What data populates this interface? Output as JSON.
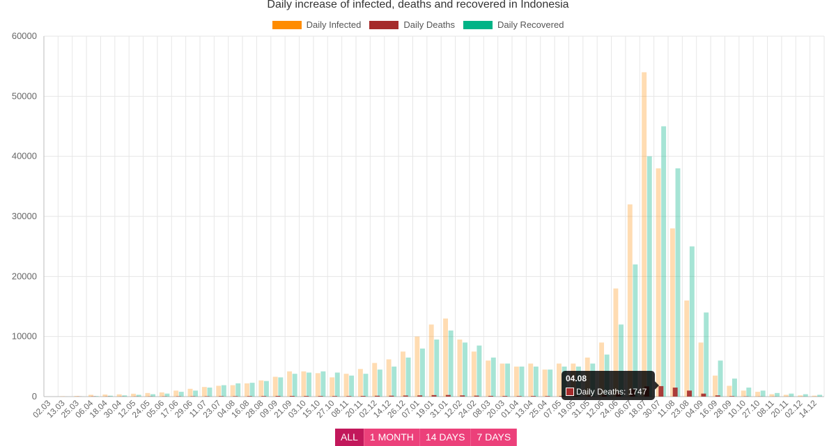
{
  "chart_data": {
    "type": "bar",
    "title": "Daily increase of infected, deaths and recovered in Indonesia",
    "ylim": [
      0,
      60000
    ],
    "yticks": [
      0,
      10000,
      20000,
      30000,
      40000,
      50000,
      60000
    ],
    "grid": true,
    "legend_position": "top",
    "x_tick_labels": [
      "02.03",
      "13.03",
      "25.03",
      "06.04",
      "18.04",
      "30.04",
      "12.05",
      "24.05",
      "05.06",
      "17.06",
      "29.06",
      "11.07",
      "23.07",
      "04.08",
      "16.08",
      "28.08",
      "09.09",
      "21.09",
      "03.10",
      "15.10",
      "27.10",
      "08.11",
      "20.11",
      "02.12",
      "14.12",
      "26.12",
      "07.01",
      "19.01",
      "31.01",
      "12.02",
      "24.02",
      "08.03",
      "20.03",
      "01.04",
      "13.04",
      "25.04",
      "07.05",
      "19.05",
      "31.05",
      "12.06",
      "24.06",
      "06.07",
      "18.07",
      "30.07",
      "11.08",
      "23.08",
      "04.09",
      "16.09",
      "28.09",
      "10.10",
      "27.10",
      "08.11",
      "20.11",
      "02.12",
      "14.12"
    ],
    "series": [
      {
        "name": "Daily Infected",
        "color": "#ff8c00",
        "x": [
          "02.03",
          "13.03",
          "25.03",
          "06.04",
          "18.04",
          "30.04",
          "12.05",
          "24.05",
          "05.06",
          "17.06",
          "29.06",
          "11.07",
          "23.07",
          "04.08",
          "16.08",
          "28.08",
          "09.09",
          "21.09",
          "03.10",
          "15.10",
          "27.10",
          "08.11",
          "20.11",
          "02.12",
          "14.12",
          "26.12",
          "07.01",
          "19.01",
          "31.01",
          "12.02",
          "24.02",
          "08.03",
          "20.03",
          "01.04",
          "13.04",
          "25.04",
          "07.05",
          "19.05",
          "31.05",
          "12.06",
          "24.06",
          "06.07",
          "18.07",
          "30.07",
          "11.08",
          "23.08",
          "04.09",
          "16.09",
          "28.09",
          "10.10",
          "27.10",
          "08.11",
          "20.11",
          "02.12",
          "14.12"
        ],
        "values": [
          2,
          50,
          100,
          300,
          350,
          380,
          480,
          600,
          700,
          1000,
          1300,
          1600,
          1800,
          1900,
          2200,
          2700,
          3300,
          4200,
          4200,
          3900,
          3200,
          3800,
          4600,
          5600,
          6200,
          7500,
          10000,
          12000,
          13000,
          9500,
          7500,
          6000,
          5500,
          5000,
          5500,
          4500,
          5500,
          5500,
          6500,
          9000,
          18000,
          32000,
          54000,
          38000,
          28000,
          16000,
          9000,
          3500,
          1800,
          1000,
          800,
          400,
          300,
          200,
          150
        ]
      },
      {
        "name": "Daily Deaths",
        "color": "#a52a2a",
        "x": [
          "02.03",
          "13.03",
          "25.03",
          "06.04",
          "18.04",
          "30.04",
          "12.05",
          "24.05",
          "05.06",
          "17.06",
          "29.06",
          "11.07",
          "23.07",
          "04.08",
          "16.08",
          "28.08",
          "09.09",
          "21.09",
          "03.10",
          "15.10",
          "27.10",
          "08.11",
          "20.11",
          "02.12",
          "14.12",
          "26.12",
          "07.01",
          "19.01",
          "31.01",
          "12.02",
          "24.02",
          "08.03",
          "20.03",
          "01.04",
          "13.04",
          "25.04",
          "07.05",
          "19.05",
          "31.05",
          "12.06",
          "24.06",
          "06.07",
          "18.07",
          "30.07",
          "11.08",
          "23.08",
          "04.09",
          "16.09",
          "28.09",
          "10.10",
          "27.10",
          "08.11",
          "20.11",
          "02.12",
          "14.12"
        ],
        "values": [
          0,
          3,
          15,
          30,
          25,
          20,
          25,
          30,
          40,
          50,
          55,
          60,
          70,
          70,
          80,
          90,
          110,
          110,
          100,
          95,
          90,
          90,
          110,
          140,
          150,
          180,
          200,
          250,
          270,
          200,
          160,
          120,
          100,
          90,
          100,
          90,
          110,
          130,
          160,
          250,
          600,
          1200,
          1700,
          1747,
          1500,
          1000,
          500,
          200,
          80,
          40,
          20,
          15,
          10,
          8,
          5
        ]
      },
      {
        "name": "Daily Recovered",
        "color": "#00b386",
        "x": [
          "02.03",
          "13.03",
          "25.03",
          "06.04",
          "18.04",
          "30.04",
          "12.05",
          "24.05",
          "05.06",
          "17.06",
          "29.06",
          "11.07",
          "23.07",
          "04.08",
          "16.08",
          "28.08",
          "09.09",
          "21.09",
          "03.10",
          "15.10",
          "27.10",
          "08.11",
          "20.11",
          "02.12",
          "14.12",
          "26.12",
          "07.01",
          "19.01",
          "31.01",
          "12.02",
          "24.02",
          "08.03",
          "20.03",
          "01.04",
          "13.04",
          "25.04",
          "07.05",
          "19.05",
          "31.05",
          "12.06",
          "24.06",
          "06.07",
          "18.07",
          "30.07",
          "11.08",
          "23.08",
          "04.09",
          "16.09",
          "28.09",
          "10.10",
          "27.10",
          "08.11",
          "20.11",
          "02.12",
          "14.12"
        ],
        "values": [
          0,
          5,
          20,
          80,
          150,
          200,
          300,
          400,
          500,
          800,
          1000,
          1500,
          1900,
          2200,
          2300,
          2600,
          3200,
          3800,
          4000,
          4200,
          4000,
          3500,
          3800,
          4500,
          5000,
          6500,
          8000,
          9500,
          11000,
          9000,
          8500,
          6500,
          5500,
          5000,
          5000,
          4500,
          5000,
          5000,
          5500,
          7000,
          12000,
          22000,
          40000,
          45000,
          38000,
          25000,
          14000,
          6000,
          3000,
          1500,
          1000,
          600,
          500,
          400,
          300
        ]
      }
    ],
    "tooltip": {
      "title": "04.08",
      "label": "Daily Deaths: 1747"
    }
  },
  "range_buttons": [
    "ALL",
    "1 MONTH",
    "14 DAYS",
    "7 DAYS"
  ]
}
